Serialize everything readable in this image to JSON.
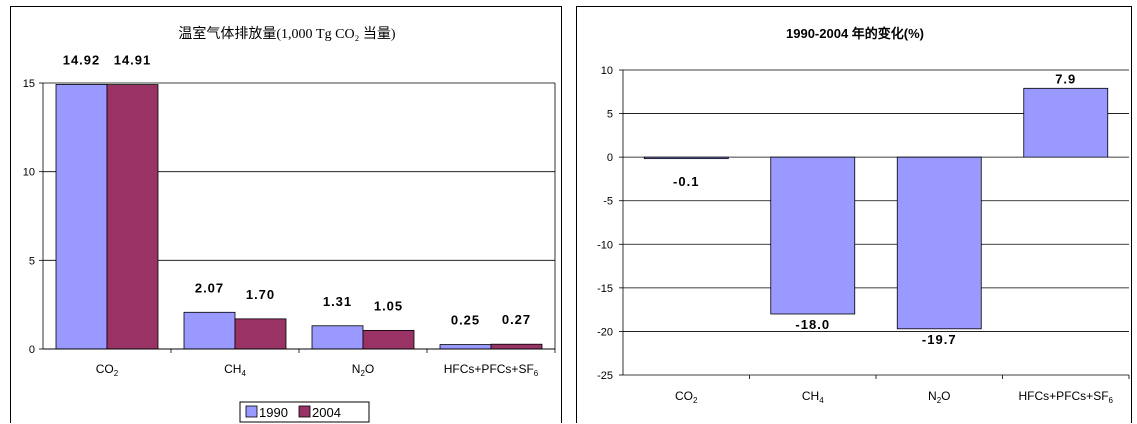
{
  "chart_data": [
    {
      "type": "bar",
      "title": "温室气体排放量(1,000 Tg CO₂ 当量)",
      "categories": [
        "CO₂",
        "CH₄",
        "N₂O",
        "HFCs+PFCs+SF₆"
      ],
      "series": [
        {
          "name": "1990",
          "values": [
            14.92,
            2.07,
            1.31,
            0.25
          ],
          "labels": [
            "14.92",
            "2.07",
            "1.31",
            "0.25"
          ],
          "color": "#9999ff"
        },
        {
          "name": "2004",
          "values": [
            14.91,
            1.7,
            1.05,
            0.27
          ],
          "labels": [
            "14.91",
            "1.70",
            "1.05",
            "0.27"
          ],
          "color": "#993366"
        }
      ],
      "ylim": [
        0,
        15
      ],
      "yticks": [
        "0",
        "5",
        "10",
        "15"
      ],
      "grid": true,
      "legend": "bottom"
    },
    {
      "type": "bar",
      "title": "1990-2004 年的变化(%)",
      "categories": [
        "CO₂",
        "CH₄",
        "N₂O",
        "HFCs+PFCs+SF₆"
      ],
      "series": [
        {
          "values": [
            -0.1,
            -18.0,
            -19.7,
            7.9
          ],
          "labels": [
            "-0.1",
            "-18.0",
            "-19.7",
            "7.9"
          ],
          "color": "#9999ff"
        }
      ],
      "ylim": [
        -25,
        10
      ],
      "yticks": [
        "10",
        "5",
        "0",
        "-5",
        "-10",
        "-15",
        "-20",
        "-25"
      ],
      "grid": true
    }
  ]
}
